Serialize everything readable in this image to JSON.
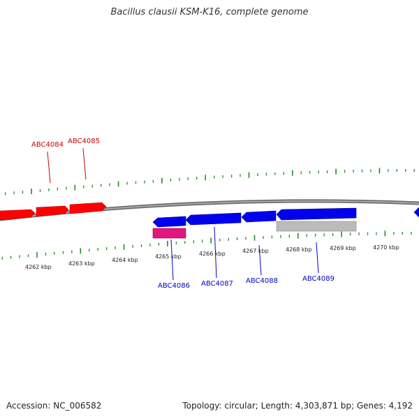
{
  "title": "Bacillus clausii KSM-K16, complete genome",
  "footer": {
    "accession": "Accession: NC_006582",
    "summary": "Topology: circular; Length: 4,303,871 bp; Genes: 4,192"
  },
  "colors": {
    "backbone": "#888888",
    "ticks": "#228B22",
    "forward_gene": "#ff0000",
    "reverse_gene": "#0000ee",
    "rna_gene": "#e0177f",
    "other_feature": "#bbbbbb",
    "forward_label": "#cc0000",
    "reverse_label": "#0000cc"
  },
  "scale_ticks": [
    {
      "label": "4262 kbp"
    },
    {
      "label": "4263 kbp"
    },
    {
      "label": "4264 kbp"
    },
    {
      "label": "4265 kbp"
    },
    {
      "label": "4266 kbp"
    },
    {
      "label": "4267 kbp"
    },
    {
      "label": "4268 kbp"
    },
    {
      "label": "4269 kbp"
    },
    {
      "label": "4270 kbp"
    }
  ],
  "forward_labels": [
    "ABC4084",
    "ABC4085"
  ],
  "reverse_labels": [
    "ABC4086",
    "ABC4087",
    "ABC4088",
    "ABC4089"
  ]
}
